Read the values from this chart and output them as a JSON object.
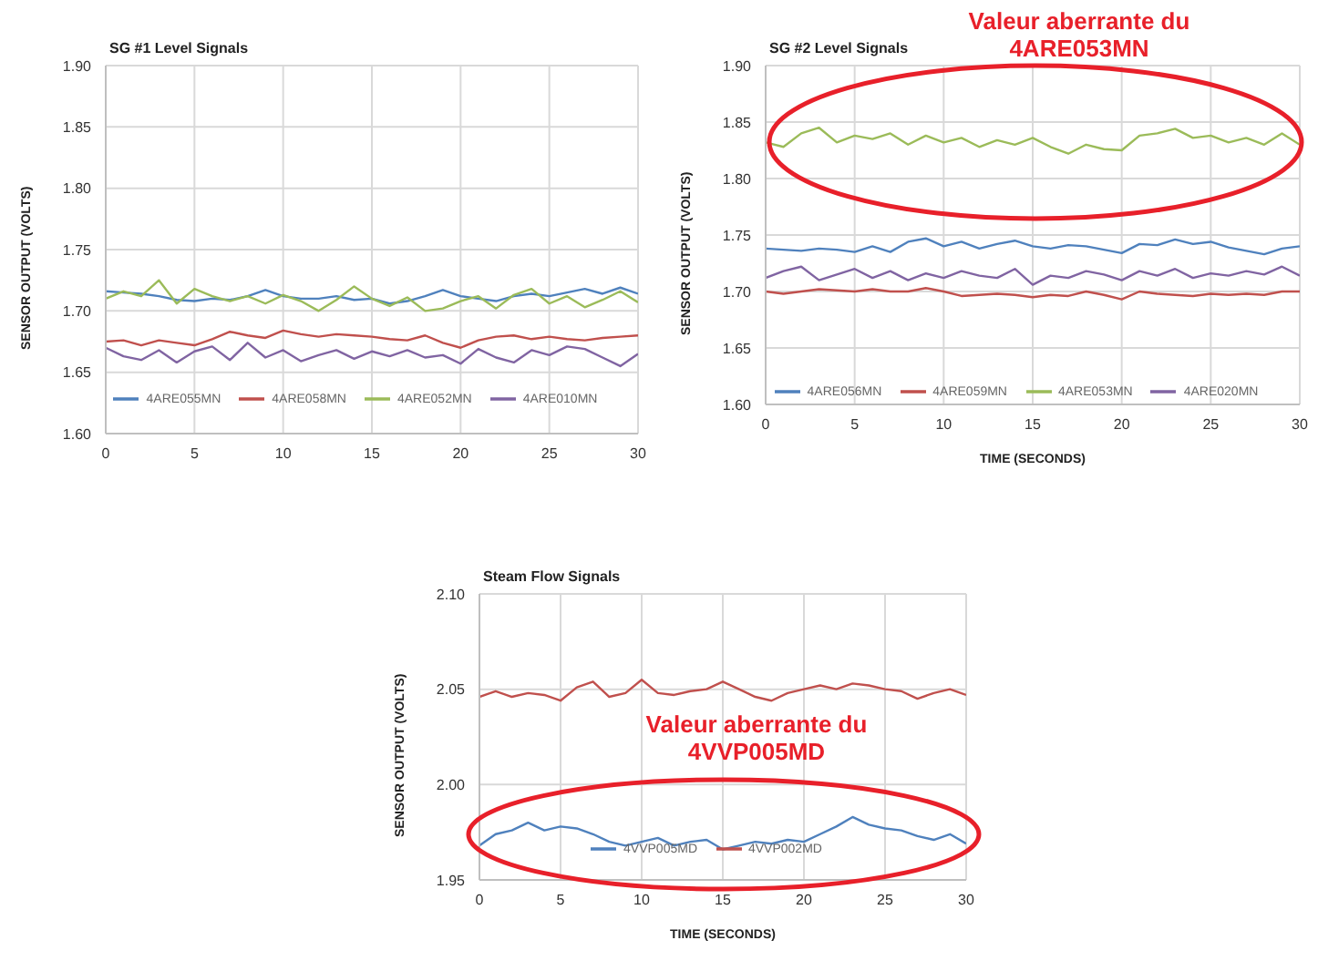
{
  "chart_data": [
    {
      "type": "line",
      "title": "SG #1 Level Signals",
      "ylabel": "SENSOR OUTPUT (VOLTS)",
      "x": [
        0,
        1,
        2,
        3,
        4,
        5,
        6,
        7,
        8,
        9,
        10,
        11,
        12,
        13,
        14,
        15,
        16,
        17,
        18,
        19,
        20,
        21,
        22,
        23,
        24,
        25,
        26,
        27,
        28,
        29,
        30
      ],
      "xlim": [
        0,
        30
      ],
      "xticks": [
        0,
        5,
        10,
        15,
        20,
        25,
        30
      ],
      "ylim": [
        1.6,
        1.9
      ],
      "yticks": [
        {
          "value": 1.6,
          "label": "1.60"
        },
        {
          "value": 1.65,
          "label": "1.65"
        },
        {
          "value": 1.7,
          "label": "1.70"
        },
        {
          "value": 1.75,
          "label": "1.75"
        },
        {
          "value": 1.8,
          "label": "1.80"
        },
        {
          "value": 1.85,
          "label": "1.85"
        },
        {
          "value": 1.9,
          "label": "1.90"
        }
      ],
      "grid": true,
      "legend": "bottom",
      "marker": "none",
      "line_style": "solid",
      "series": [
        {
          "name": "4ARE055MN",
          "color": "#4f81bd",
          "values": [
            1.716,
            1.715,
            1.714,
            1.712,
            1.709,
            1.708,
            1.71,
            1.709,
            1.712,
            1.717,
            1.712,
            1.71,
            1.71,
            1.712,
            1.709,
            1.71,
            1.706,
            1.708,
            1.712,
            1.717,
            1.712,
            1.71,
            1.708,
            1.712,
            1.714,
            1.712,
            1.715,
            1.718,
            1.714,
            1.719,
            1.714
          ]
        },
        {
          "name": "4ARE058MN",
          "color": "#c0504d",
          "values": [
            1.675,
            1.676,
            1.672,
            1.676,
            1.674,
            1.672,
            1.677,
            1.683,
            1.68,
            1.678,
            1.684,
            1.681,
            1.679,
            1.681,
            1.68,
            1.679,
            1.677,
            1.676,
            1.68,
            1.674,
            1.67,
            1.676,
            1.679,
            1.68,
            1.677,
            1.679,
            1.677,
            1.676,
            1.678,
            1.679,
            1.68
          ]
        },
        {
          "name": "4ARE052MN",
          "color": "#9bbb59",
          "values": [
            1.71,
            1.716,
            1.712,
            1.725,
            1.706,
            1.718,
            1.712,
            1.708,
            1.712,
            1.706,
            1.713,
            1.708,
            1.7,
            1.709,
            1.72,
            1.71,
            1.704,
            1.711,
            1.7,
            1.702,
            1.708,
            1.712,
            1.702,
            1.713,
            1.718,
            1.706,
            1.712,
            1.703,
            1.709,
            1.716,
            1.707
          ]
        },
        {
          "name": "4ARE010MN",
          "color": "#8064a2",
          "values": [
            1.67,
            1.663,
            1.66,
            1.668,
            1.658,
            1.667,
            1.671,
            1.66,
            1.674,
            1.662,
            1.668,
            1.659,
            1.664,
            1.668,
            1.661,
            1.667,
            1.663,
            1.668,
            1.662,
            1.664,
            1.657,
            1.669,
            1.662,
            1.658,
            1.668,
            1.664,
            1.671,
            1.669,
            1.662,
            1.655,
            1.665
          ]
        }
      ]
    },
    {
      "type": "line",
      "title": "SG #2 Level Signals",
      "xlabel": "TIME (SECONDS)",
      "ylabel": "SENSOR OUTPUT (VOLTS)",
      "annotations": [
        "Valeur aberrante du 4ARE053MN"
      ],
      "x": [
        0,
        1,
        2,
        3,
        4,
        5,
        6,
        7,
        8,
        9,
        10,
        11,
        12,
        13,
        14,
        15,
        16,
        17,
        18,
        19,
        20,
        21,
        22,
        23,
        24,
        25,
        26,
        27,
        28,
        29,
        30
      ],
      "xlim": [
        0,
        30
      ],
      "xticks": [
        0,
        5,
        10,
        15,
        20,
        25,
        30
      ],
      "ylim": [
        1.6,
        1.9
      ],
      "yticks": [
        {
          "value": 1.6,
          "label": "1.60"
        },
        {
          "value": 1.65,
          "label": "1.65"
        },
        {
          "value": 1.7,
          "label": "1.70"
        },
        {
          "value": 1.75,
          "label": "1.75"
        },
        {
          "value": 1.8,
          "label": "1.80"
        },
        {
          "value": 1.85,
          "label": "1.85"
        },
        {
          "value": 1.9,
          "label": "1.90"
        }
      ],
      "grid": true,
      "legend": "bottom",
      "marker": "none",
      "line_style": "solid",
      "series": [
        {
          "name": "4ARE056MN",
          "color": "#4f81bd",
          "values": [
            1.738,
            1.737,
            1.736,
            1.738,
            1.737,
            1.735,
            1.74,
            1.735,
            1.744,
            1.747,
            1.74,
            1.744,
            1.738,
            1.742,
            1.745,
            1.74,
            1.738,
            1.741,
            1.74,
            1.737,
            1.734,
            1.742,
            1.741,
            1.746,
            1.742,
            1.744,
            1.739,
            1.736,
            1.733,
            1.738,
            1.74
          ]
        },
        {
          "name": "4ARE059MN",
          "color": "#c0504d",
          "values": [
            1.7,
            1.698,
            1.7,
            1.702,
            1.701,
            1.7,
            1.702,
            1.7,
            1.7,
            1.703,
            1.7,
            1.696,
            1.697,
            1.698,
            1.697,
            1.695,
            1.697,
            1.696,
            1.7,
            1.697,
            1.693,
            1.7,
            1.698,
            1.697,
            1.696,
            1.698,
            1.697,
            1.698,
            1.697,
            1.7,
            1.7
          ]
        },
        {
          "name": "4ARE053MN",
          "color": "#9bbb59",
          "values": [
            1.832,
            1.828,
            1.84,
            1.845,
            1.832,
            1.838,
            1.835,
            1.84,
            1.83,
            1.838,
            1.832,
            1.836,
            1.828,
            1.834,
            1.83,
            1.836,
            1.828,
            1.822,
            1.83,
            1.826,
            1.825,
            1.838,
            1.84,
            1.844,
            1.836,
            1.838,
            1.832,
            1.836,
            1.83,
            1.84,
            1.83
          ]
        },
        {
          "name": "4ARE020MN",
          "color": "#8064a2",
          "values": [
            1.712,
            1.718,
            1.722,
            1.71,
            1.715,
            1.72,
            1.712,
            1.718,
            1.71,
            1.716,
            1.712,
            1.718,
            1.714,
            1.712,
            1.72,
            1.706,
            1.714,
            1.712,
            1.718,
            1.715,
            1.71,
            1.718,
            1.714,
            1.72,
            1.712,
            1.716,
            1.714,
            1.718,
            1.715,
            1.722,
            1.714
          ]
        }
      ]
    },
    {
      "type": "line",
      "title": "Steam Flow Signals",
      "xlabel": "TIME (SECONDS)",
      "ylabel": "SENSOR OUTPUT (VOLTS)",
      "annotations": [
        "Valeur aberrante du 4VVP005MD"
      ],
      "x": [
        0,
        1,
        2,
        3,
        4,
        5,
        6,
        7,
        8,
        9,
        10,
        11,
        12,
        13,
        14,
        15,
        16,
        17,
        18,
        19,
        20,
        21,
        22,
        23,
        24,
        25,
        26,
        27,
        28,
        29,
        30
      ],
      "xlim": [
        0,
        30
      ],
      "xticks": [
        0,
        5,
        10,
        15,
        20,
        25,
        30
      ],
      "ylim": [
        1.95,
        2.1
      ],
      "yticks": [
        {
          "value": 1.95,
          "label": "1.95"
        },
        {
          "value": 2.0,
          "label": "2.00"
        },
        {
          "value": 2.05,
          "label": "2.05"
        },
        {
          "value": 2.1,
          "label": "2.10"
        }
      ],
      "grid": true,
      "legend": "bottom",
      "marker": "none",
      "line_style": "solid",
      "series": [
        {
          "name": "4VVP005MD",
          "color": "#4f81bd",
          "values": [
            1.968,
            1.974,
            1.976,
            1.98,
            1.976,
            1.978,
            1.977,
            1.974,
            1.97,
            1.968,
            1.97,
            1.972,
            1.968,
            1.97,
            1.971,
            1.966,
            1.968,
            1.97,
            1.969,
            1.971,
            1.97,
            1.974,
            1.978,
            1.983,
            1.979,
            1.977,
            1.976,
            1.973,
            1.971,
            1.974,
            1.969
          ]
        },
        {
          "name": "4VVP002MD",
          "color": "#c0504d",
          "values": [
            2.046,
            2.049,
            2.046,
            2.048,
            2.047,
            2.044,
            2.051,
            2.054,
            2.046,
            2.048,
            2.055,
            2.048,
            2.047,
            2.049,
            2.05,
            2.054,
            2.05,
            2.046,
            2.044,
            2.048,
            2.05,
            2.052,
            2.05,
            2.053,
            2.052,
            2.05,
            2.049,
            2.045,
            2.048,
            2.05,
            2.047
          ]
        }
      ]
    }
  ]
}
